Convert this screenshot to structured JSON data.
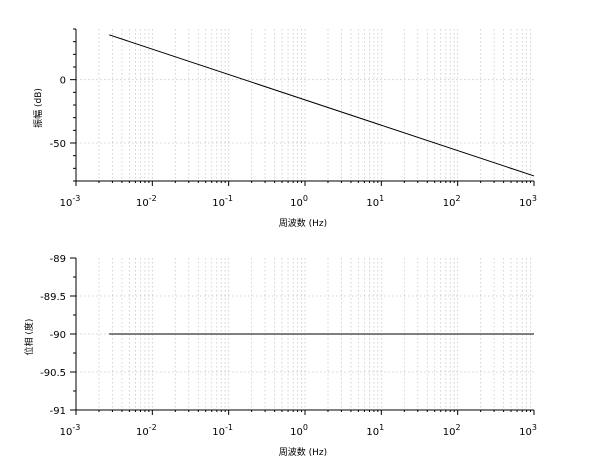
{
  "chart_data": [
    {
      "type": "line",
      "xscale": "log",
      "xlim": [
        0.001,
        1000
      ],
      "ylim": [
        -80,
        40
      ],
      "xticks": [
        0.001,
        0.01,
        0.1,
        1,
        10,
        100,
        1000
      ],
      "yticks": [
        0,
        -50
      ],
      "ytick_labels": [
        "0",
        "-50"
      ],
      "xlabel": "周波数 (Hz)",
      "ylabel": "振幅 (dB)",
      "grid": true,
      "series": [
        {
          "x": [
            0.00272,
            1000
          ],
          "y": [
            35.4,
            -76
          ]
        }
      ]
    },
    {
      "type": "line",
      "xscale": "log",
      "xlim": [
        0.001,
        1000
      ],
      "ylim": [
        -91,
        -89
      ],
      "xticks": [
        0.001,
        0.01,
        0.1,
        1,
        10,
        100,
        1000
      ],
      "yticks": [
        -89,
        -89.5,
        -90,
        -90.5,
        -91
      ],
      "ytick_labels": [
        "-89",
        "-89.5",
        "-90",
        "-90.5",
        "-91"
      ],
      "xlabel": "周波数 (Hz)",
      "ylabel": "位相 (度)",
      "grid": true,
      "series": [
        {
          "x": [
            0.00272,
            1000
          ],
          "y": [
            -90,
            -90
          ]
        }
      ]
    }
  ]
}
